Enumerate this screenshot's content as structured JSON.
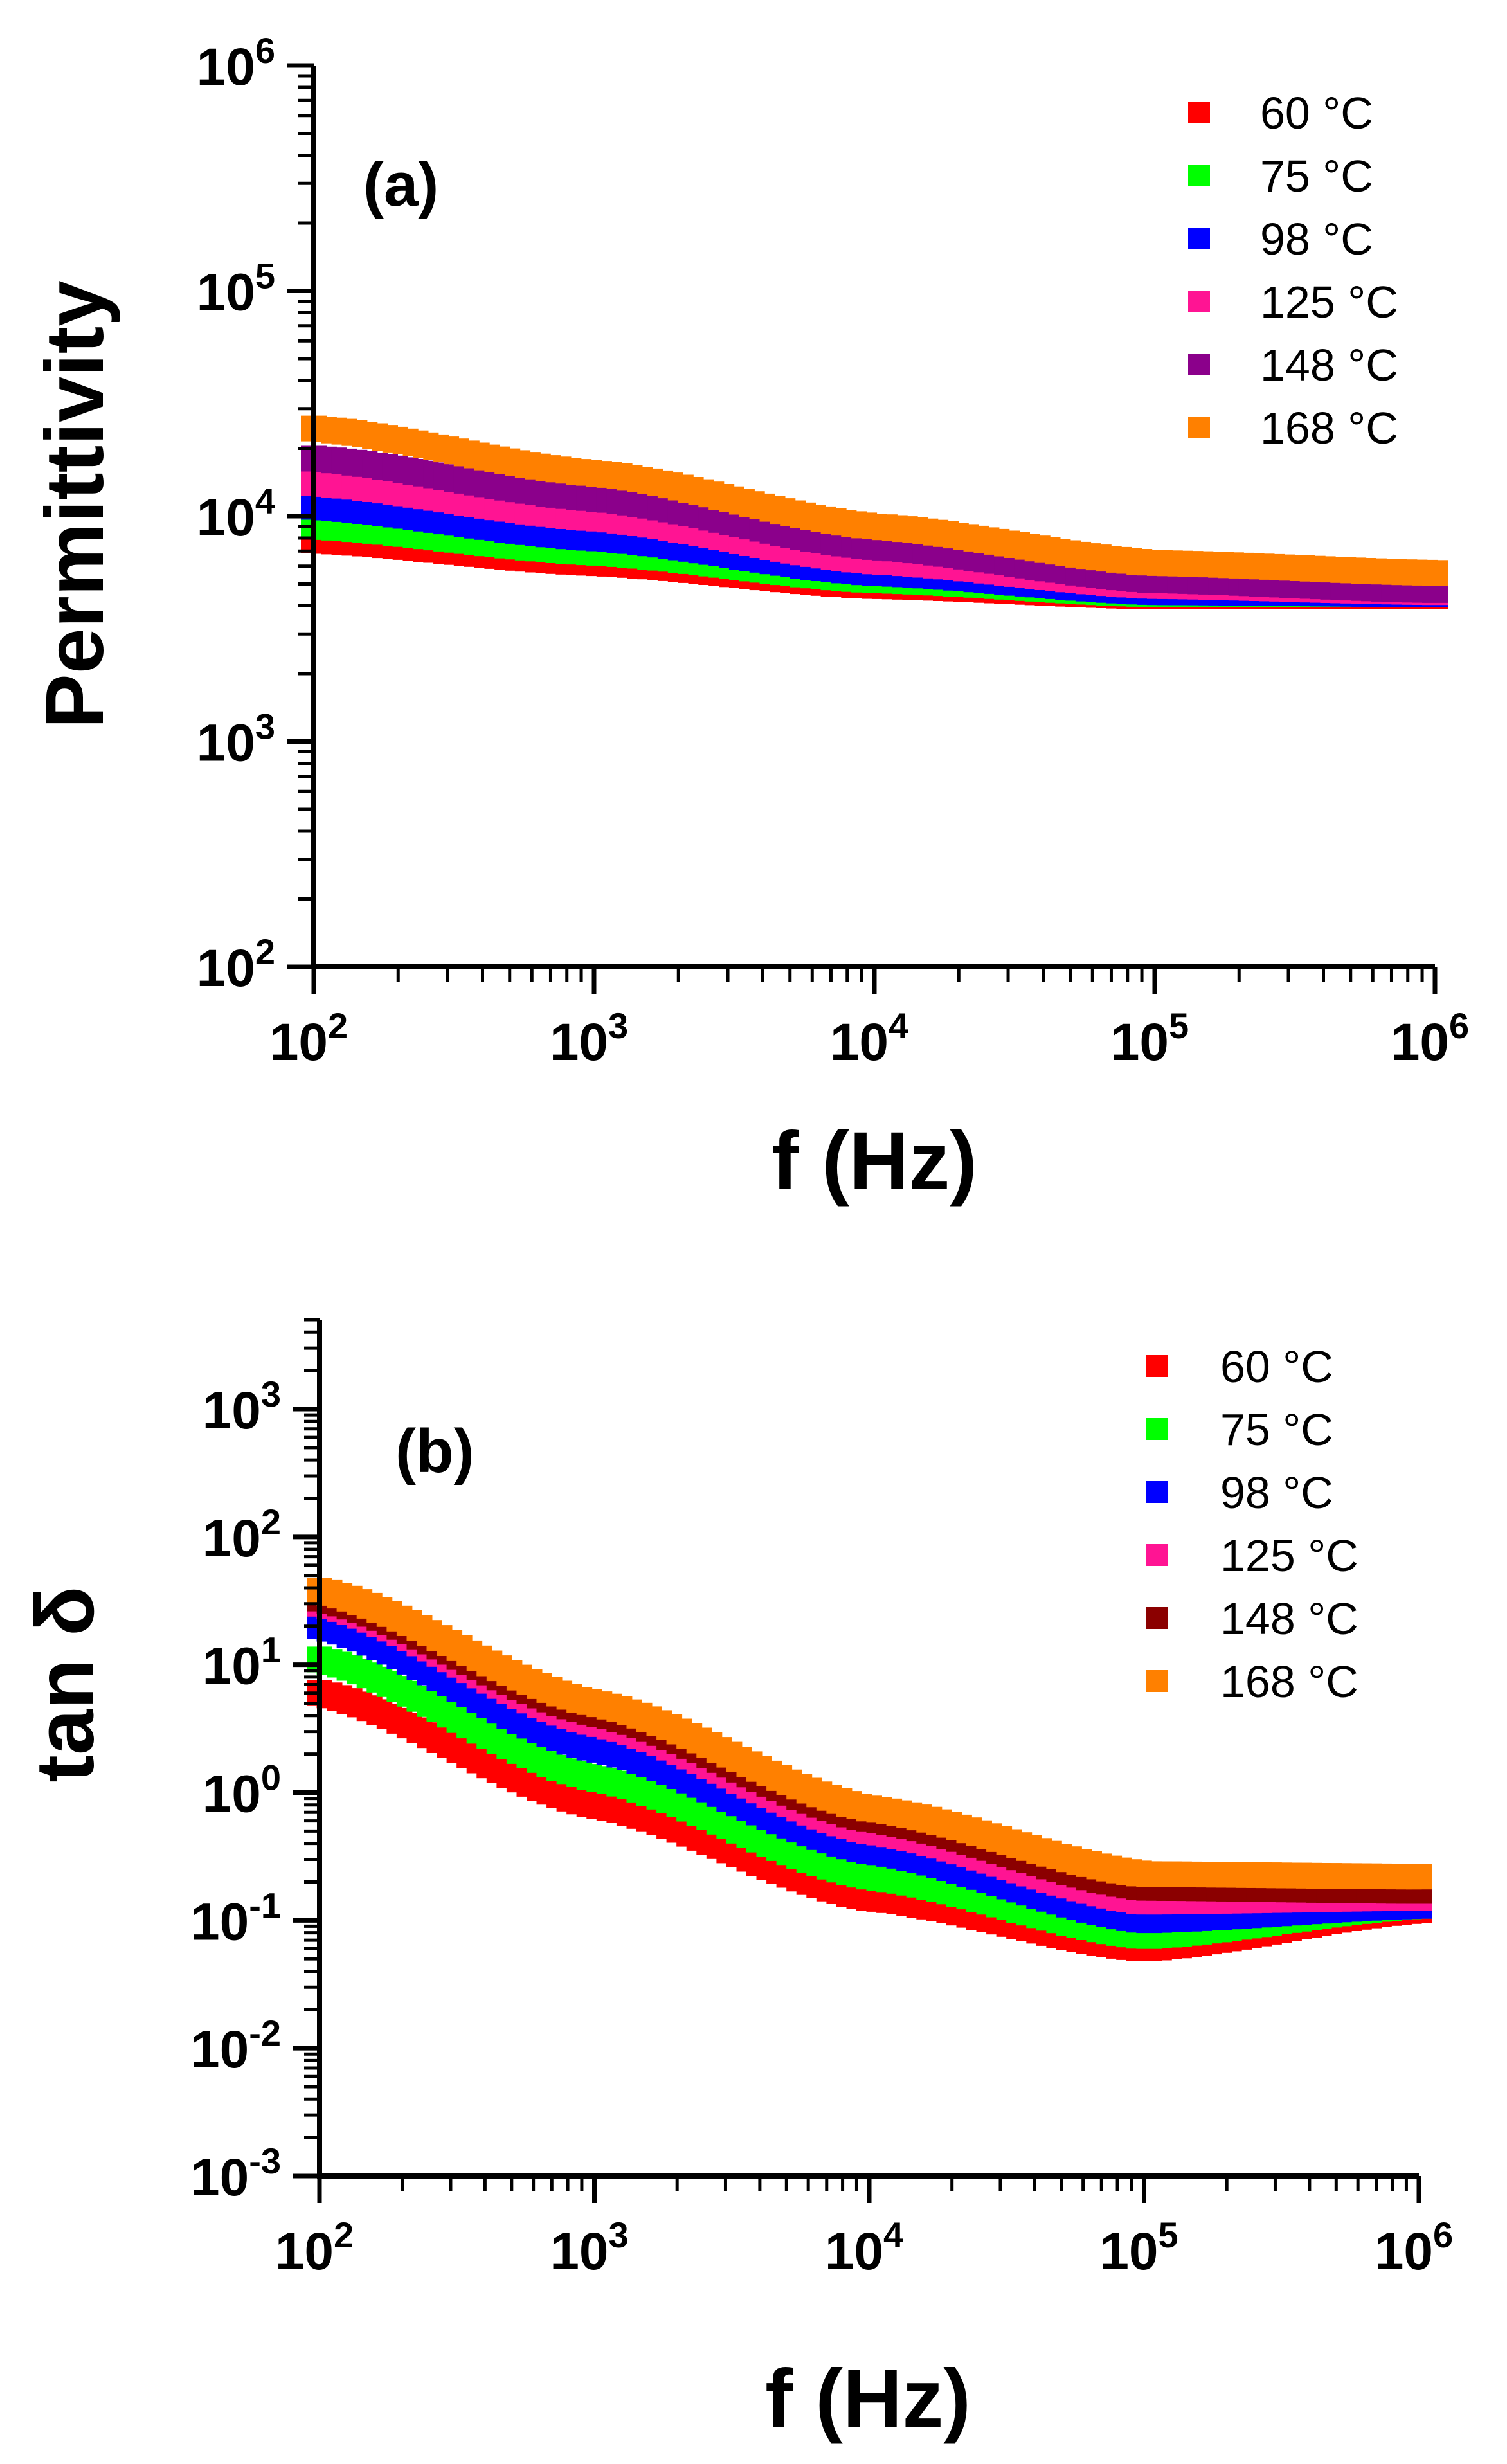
{
  "chart_data": [
    {
      "type": "scatter",
      "panel_label": "(a)",
      "xlabel": "f (Hz)",
      "ylabel": "Permittivity",
      "xscale": "log",
      "yscale": "log",
      "xlim": [
        100,
        1000000
      ],
      "ylim": [
        100,
        1000000
      ],
      "xticks": [
        {
          "base": "10",
          "exp": "2"
        },
        {
          "base": "10",
          "exp": "3"
        },
        {
          "base": "10",
          "exp": "4"
        },
        {
          "base": "10",
          "exp": "5"
        },
        {
          "base": "10",
          "exp": "6"
        }
      ],
      "yticks": [
        {
          "base": "10",
          "exp": "2"
        },
        {
          "base": "10",
          "exp": "3"
        },
        {
          "base": "10",
          "exp": "4"
        },
        {
          "base": "10",
          "exp": "5"
        },
        {
          "base": "10",
          "exp": "6"
        }
      ],
      "legend_position": "top-right",
      "series": [
        {
          "name": "60 °C",
          "color": "#ff0000",
          "x": [
            100,
            1000,
            10000,
            100000,
            1000000
          ],
          "y": [
            7800,
            6200,
            4900,
            4400,
            4400
          ]
        },
        {
          "name": "75 °C",
          "color": "#00ff00",
          "x": [
            100,
            1000,
            10000,
            100000,
            1000000
          ],
          "y": [
            9000,
            6900,
            5200,
            4500,
            4500
          ]
        },
        {
          "name": "98 °C",
          "color": "#0000ff",
          "x": [
            100,
            1000,
            10000,
            100000,
            1000000
          ],
          "y": [
            11000,
            8000,
            5600,
            4600,
            4500
          ]
        },
        {
          "name": "125 °C",
          "color": "#ff1493",
          "x": [
            100,
            1000,
            10000,
            100000,
            1000000
          ],
          "y": [
            14000,
            9800,
            6300,
            4900,
            4600
          ]
        },
        {
          "name": "148 °C",
          "color": "#8b008b",
          "x": [
            100,
            1000,
            10000,
            100000,
            1000000
          ],
          "y": [
            18000,
            12000,
            7300,
            5200,
            4700
          ]
        },
        {
          "name": "168 °C",
          "color": "#ff8000",
          "x": [
            100,
            1000,
            10000,
            100000,
            1000000
          ],
          "y": [
            24500,
            15500,
            9000,
            6200,
            5600
          ]
        }
      ]
    },
    {
      "type": "scatter",
      "panel_label": "(b)",
      "xlabel": "f (Hz)",
      "ylabel": "tan δ",
      "xscale": "log",
      "yscale": "log",
      "xlim": [
        100,
        1000000
      ],
      "ylim": [
        0.001,
        5000
      ],
      "xticks": [
        {
          "base": "10",
          "exp": "2"
        },
        {
          "base": "10",
          "exp": "3"
        },
        {
          "base": "10",
          "exp": "4"
        },
        {
          "base": "10",
          "exp": "5"
        },
        {
          "base": "10",
          "exp": "6"
        }
      ],
      "yticks": [
        {
          "base": "10",
          "exp": "-3"
        },
        {
          "base": "10",
          "exp": "-2"
        },
        {
          "base": "10",
          "exp": "-1"
        },
        {
          "base": "10",
          "exp": "0"
        },
        {
          "base": "10",
          "exp": "1"
        },
        {
          "base": "10",
          "exp": "2"
        },
        {
          "base": "10",
          "exp": "3"
        }
      ],
      "legend_position": "top-right",
      "series": [
        {
          "name": "60 °C",
          "color": "#ff0000",
          "x": [
            100,
            1000,
            10000,
            100000,
            1000000
          ],
          "y": [
            6,
            0.8,
            0.15,
            0.06,
            0.12
          ]
        },
        {
          "name": "75 °C",
          "color": "#00ff00",
          "x": [
            100,
            1000,
            10000,
            100000,
            1000000
          ],
          "y": [
            11,
            1.3,
            0.22,
            0.075,
            0.13
          ]
        },
        {
          "name": "98 °C",
          "color": "#0000ff",
          "x": [
            100,
            1000,
            10000,
            100000,
            1000000
          ],
          "y": [
            20,
            2.2,
            0.35,
            0.1,
            0.13
          ]
        },
        {
          "name": "125 °C",
          "color": "#ff1493",
          "x": [
            100,
            1000,
            10000,
            100000,
            1000000
          ],
          "y": [
            30,
            3.5,
            0.5,
            0.14,
            0.15
          ]
        },
        {
          "name": "148 °C",
          "color": "#8b0000",
          "x": [
            100,
            1000,
            10000,
            100000,
            1000000
          ],
          "y": [
            33,
            4.2,
            0.62,
            0.18,
            0.17
          ]
        },
        {
          "name": "168 °C",
          "color": "#ff8000",
          "x": [
            100,
            1000,
            10000,
            100000,
            1000000
          ],
          "y": [
            38,
            5,
            0.75,
            0.23,
            0.22
          ]
        }
      ]
    }
  ]
}
